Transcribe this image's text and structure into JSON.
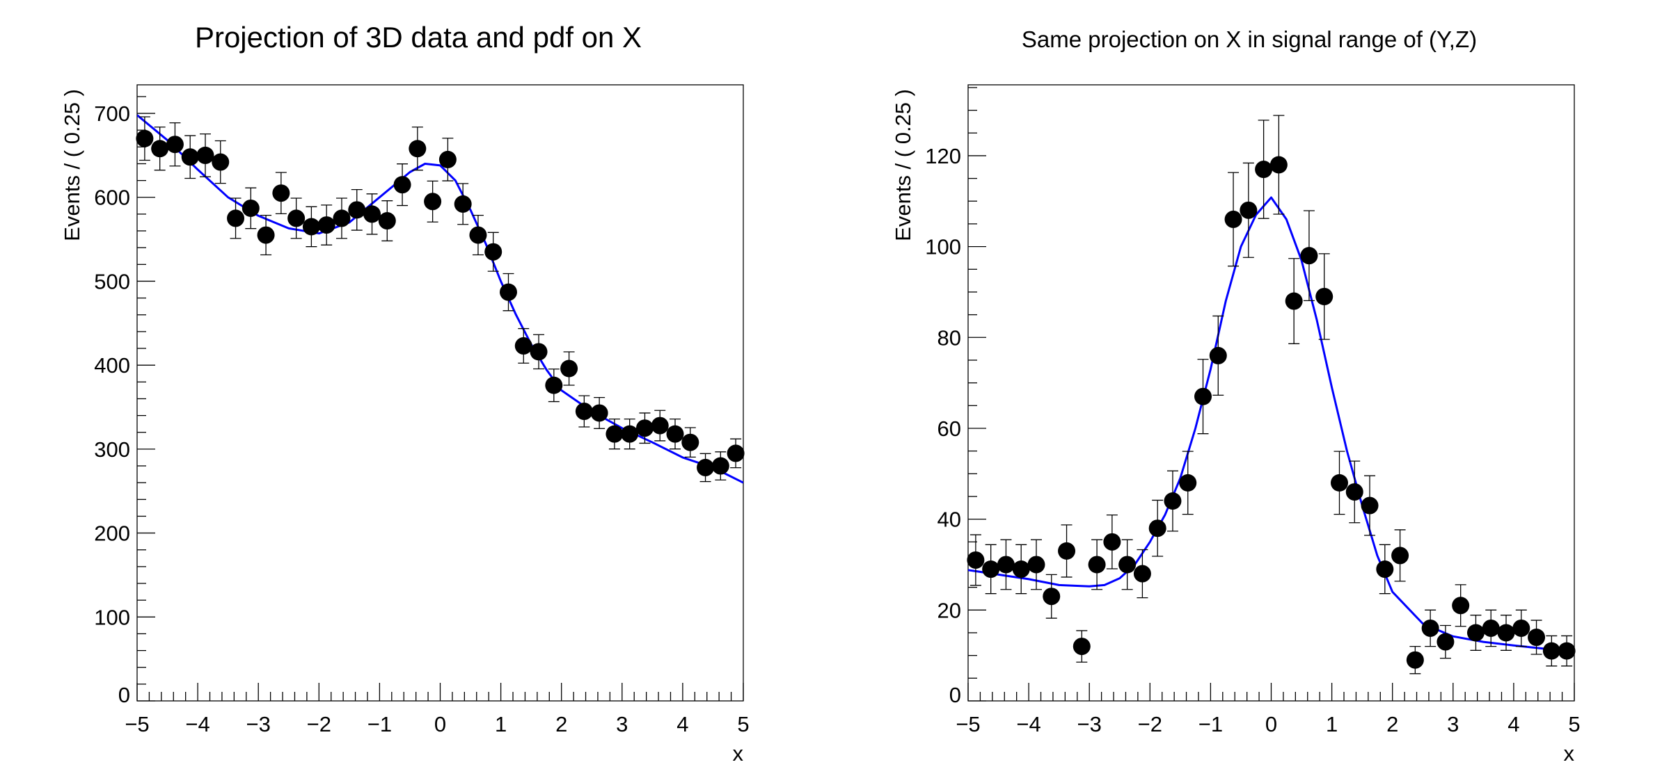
{
  "colors": {
    "data": "#000000",
    "curve": "#0000ff",
    "frame": "#000000",
    "background": "#ffffff"
  },
  "chart_data": [
    {
      "type": "scatter",
      "title": "Projection of 3D data and pdf on X",
      "xlabel": "x",
      "ylabel": "Events / ( 0.25 )",
      "xlim": [
        -5,
        5
      ],
      "ylim": [
        0,
        734
      ],
      "xticks": [
        "−5",
        "−4",
        "−3",
        "−2",
        "−1",
        "0",
        "1",
        "2",
        "3",
        "4",
        "5"
      ],
      "yticks": [
        "0",
        "100",
        "200",
        "300",
        "400",
        "500",
        "600",
        "700"
      ],
      "grid": false,
      "error_bars": "sqrt(N)",
      "series": [
        {
          "kind": "points",
          "x": [
            -4.875,
            -4.625,
            -4.375,
            -4.125,
            -3.875,
            -3.625,
            -3.375,
            -3.125,
            -2.875,
            -2.625,
            -2.375,
            -2.125,
            -1.875,
            -1.625,
            -1.375,
            -1.125,
            -0.875,
            -0.625,
            -0.375,
            -0.125,
            0.125,
            0.375,
            0.625,
            0.875,
            1.125,
            1.375,
            1.625,
            1.875,
            2.125,
            2.375,
            2.625,
            2.875,
            3.125,
            3.375,
            3.625,
            3.875,
            4.125,
            4.375,
            4.625,
            4.875
          ],
          "y": [
            670,
            658,
            663,
            648,
            650,
            642,
            575,
            587,
            555,
            605,
            575,
            565,
            567,
            575,
            585,
            580,
            572,
            615,
            658,
            595,
            645,
            592,
            555,
            535,
            487,
            423,
            416,
            376,
            396,
            345,
            343,
            318,
            318,
            325,
            328,
            318,
            308,
            278,
            280,
            295
          ]
        },
        {
          "kind": "curve",
          "x": [
            -5,
            -4.5,
            -4,
            -3.5,
            -3,
            -2.5,
            -2,
            -1.5,
            -1,
            -0.5,
            -0.25,
            0,
            0.25,
            0.5,
            0.75,
            1,
            1.25,
            1.5,
            1.75,
            2,
            2.5,
            3,
            3.5,
            4,
            4.5,
            5
          ],
          "y": [
            698,
            668,
            633,
            600,
            578,
            563,
            557,
            570,
            600,
            630,
            640,
            638,
            620,
            585,
            545,
            500,
            460,
            425,
            395,
            370,
            345,
            325,
            308,
            290,
            278,
            260
          ]
        }
      ]
    },
    {
      "type": "scatter",
      "title": "Same projection on X in signal range of (Y,Z)",
      "xlabel": "x",
      "ylabel": "Events / ( 0.25 )",
      "xlim": [
        -5,
        5
      ],
      "ylim": [
        0,
        135.6
      ],
      "xticks": [
        "−5",
        "−4",
        "−3",
        "−2",
        "−1",
        "0",
        "1",
        "2",
        "3",
        "4",
        "5"
      ],
      "yticks": [
        "0",
        "20",
        "40",
        "60",
        "80",
        "100",
        "120"
      ],
      "grid": false,
      "error_bars": "sqrt(N)",
      "series": [
        {
          "kind": "points",
          "x": [
            -4.875,
            -4.625,
            -4.375,
            -4.125,
            -3.875,
            -3.625,
            -3.375,
            -3.125,
            -2.875,
            -2.625,
            -2.375,
            -2.125,
            -1.875,
            -1.625,
            -1.375,
            -1.125,
            -0.875,
            -0.625,
            -0.375,
            -0.125,
            0.125,
            0.375,
            0.625,
            0.875,
            1.125,
            1.375,
            1.625,
            1.875,
            2.125,
            2.375,
            2.625,
            2.875,
            3.125,
            3.375,
            3.625,
            3.875,
            4.125,
            4.375,
            4.625,
            4.875
          ],
          "y": [
            31,
            29,
            30,
            29,
            30,
            23,
            33,
            12,
            30,
            35,
            30,
            28,
            38,
            44,
            48,
            67,
            76,
            106,
            108,
            117,
            118,
            88,
            98,
            89,
            48,
            46,
            43,
            29,
            32,
            9,
            16,
            13,
            21,
            15,
            16,
            15,
            16,
            14,
            11,
            11
          ]
        },
        {
          "kind": "curve",
          "x": [
            -5,
            -4,
            -3.5,
            -3,
            -2.75,
            -2.5,
            -2.25,
            -2,
            -1.75,
            -1.5,
            -1.25,
            -1,
            -0.75,
            -0.5,
            -0.25,
            0,
            0.25,
            0.5,
            0.75,
            1,
            1.25,
            1.5,
            1.75,
            2,
            2.5,
            3,
            3.5,
            4,
            4.5,
            5
          ],
          "y": [
            28.8,
            26.8,
            25.5,
            25.2,
            25.5,
            27,
            30,
            35,
            41,
            49,
            60,
            73,
            88,
            100,
            107,
            110.8,
            106,
            97,
            84,
            69,
            55,
            43,
            32,
            24,
            17,
            14.2,
            13,
            12.2,
            11.5,
            10.8
          ]
        }
      ]
    }
  ]
}
